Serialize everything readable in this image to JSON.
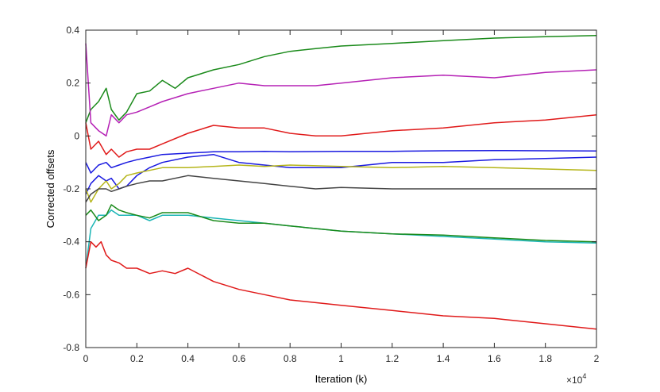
{
  "chart_data": {
    "type": "line",
    "xlabel": "Iteration (k)",
    "ylabel": "Corrected offsets",
    "x_multiplier_label": "×10",
    "x_multiplier_exponent": "4",
    "xlim": [
      0,
      2
    ],
    "ylim": [
      -0.8,
      0.4
    ],
    "grid": false,
    "legend": "none",
    "x_ticks": [
      0,
      0.2,
      0.4,
      0.6,
      0.8,
      1,
      1.2,
      1.4,
      1.6,
      1.8,
      2
    ],
    "x_tick_labels": [
      "0",
      "0.2",
      "0.4",
      "0.6",
      "0.8",
      "1",
      "1.2",
      "1.4",
      "1.6",
      "1.8",
      "2"
    ],
    "y_ticks": [
      -0.8,
      -0.6,
      -0.4,
      -0.2,
      0,
      0.2,
      0.4
    ],
    "y_tick_labels": [
      "-0.8",
      "-0.6",
      "-0.4",
      "-0.2",
      "0",
      "0.2",
      "0.4"
    ],
    "series": [
      {
        "color": "#1a8a1a",
        "x": [
          0,
          0.02,
          0.05,
          0.08,
          0.1,
          0.13,
          0.16,
          0.2,
          0.25,
          0.3,
          0.35,
          0.4,
          0.5,
          0.6,
          0.7,
          0.8,
          0.9,
          1.0,
          1.2,
          1.4,
          1.6,
          1.8,
          2.0
        ],
        "y": [
          0.05,
          0.1,
          0.13,
          0.18,
          0.1,
          0.06,
          0.09,
          0.16,
          0.17,
          0.21,
          0.18,
          0.22,
          0.25,
          0.27,
          0.3,
          0.32,
          0.33,
          0.34,
          0.35,
          0.36,
          0.37,
          0.375,
          0.38
        ]
      },
      {
        "color": "#b521b5",
        "x": [
          0,
          0.02,
          0.05,
          0.08,
          0.1,
          0.13,
          0.16,
          0.2,
          0.25,
          0.3,
          0.4,
          0.5,
          0.6,
          0.7,
          0.8,
          0.9,
          1.0,
          1.2,
          1.4,
          1.6,
          1.8,
          2.0
        ],
        "y": [
          0.35,
          0.05,
          0.02,
          0.0,
          0.08,
          0.05,
          0.08,
          0.09,
          0.11,
          0.13,
          0.16,
          0.18,
          0.2,
          0.19,
          0.19,
          0.19,
          0.2,
          0.22,
          0.23,
          0.22,
          0.24,
          0.25
        ]
      },
      {
        "color": "#e01a1a",
        "x": [
          0,
          0.02,
          0.05,
          0.08,
          0.1,
          0.13,
          0.16,
          0.2,
          0.25,
          0.3,
          0.4,
          0.5,
          0.6,
          0.7,
          0.8,
          0.9,
          1.0,
          1.2,
          1.4,
          1.6,
          1.8,
          2.0
        ],
        "y": [
          0.05,
          -0.05,
          -0.02,
          -0.07,
          -0.05,
          -0.08,
          -0.06,
          -0.05,
          -0.05,
          -0.03,
          0.01,
          0.04,
          0.03,
          0.03,
          0.01,
          0.0,
          0.0,
          0.02,
          0.03,
          0.05,
          0.06,
          0.08
        ]
      },
      {
        "color": "#1a1ae0",
        "x": [
          0,
          0.02,
          0.05,
          0.08,
          0.1,
          0.13,
          0.16,
          0.2,
          0.25,
          0.3,
          0.4,
          0.5,
          0.6,
          0.7,
          0.8,
          1.0,
          1.2,
          1.4,
          1.6,
          1.8,
          2.0
        ],
        "y": [
          -0.1,
          -0.14,
          -0.11,
          -0.1,
          -0.12,
          -0.11,
          -0.1,
          -0.09,
          -0.08,
          -0.07,
          -0.065,
          -0.06,
          -0.06,
          -0.058,
          -0.06,
          -0.058,
          -0.058,
          -0.056,
          -0.055,
          -0.056,
          -0.057
        ]
      },
      {
        "color": "#1a1ae0",
        "x": [
          0,
          0.02,
          0.05,
          0.08,
          0.1,
          0.13,
          0.16,
          0.2,
          0.25,
          0.3,
          0.4,
          0.5,
          0.6,
          0.7,
          0.8,
          1.0,
          1.2,
          1.4,
          1.6,
          1.8,
          2.0
        ],
        "y": [
          -0.22,
          -0.18,
          -0.15,
          -0.17,
          -0.16,
          -0.2,
          -0.19,
          -0.15,
          -0.12,
          -0.1,
          -0.08,
          -0.07,
          -0.1,
          -0.11,
          -0.12,
          -0.12,
          -0.1,
          -0.1,
          -0.09,
          -0.085,
          -0.08
        ]
      },
      {
        "color": "#b5b51a",
        "x": [
          0,
          0.02,
          0.05,
          0.08,
          0.1,
          0.13,
          0.16,
          0.2,
          0.25,
          0.3,
          0.4,
          0.5,
          0.6,
          0.7,
          0.8,
          1.0,
          1.2,
          1.4,
          1.6,
          1.8,
          2.0
        ],
        "y": [
          -0.2,
          -0.25,
          -0.2,
          -0.17,
          -0.2,
          -0.18,
          -0.15,
          -0.14,
          -0.13,
          -0.12,
          -0.12,
          -0.115,
          -0.11,
          -0.115,
          -0.11,
          -0.115,
          -0.12,
          -0.115,
          -0.12,
          -0.125,
          -0.13
        ]
      },
      {
        "color": "#444444",
        "x": [
          0,
          0.02,
          0.05,
          0.08,
          0.1,
          0.13,
          0.16,
          0.2,
          0.25,
          0.3,
          0.4,
          0.5,
          0.6,
          0.7,
          0.8,
          0.9,
          1.0,
          1.2,
          1.4,
          1.6,
          1.8,
          2.0
        ],
        "y": [
          -0.25,
          -0.22,
          -0.2,
          -0.2,
          -0.21,
          -0.2,
          -0.19,
          -0.18,
          -0.17,
          -0.17,
          -0.15,
          -0.16,
          -0.17,
          -0.18,
          -0.19,
          -0.2,
          -0.195,
          -0.2,
          -0.2,
          -0.2,
          -0.2,
          -0.2
        ]
      },
      {
        "color": "#1ab5b5",
        "x": [
          0,
          0.02,
          0.05,
          0.08,
          0.1,
          0.13,
          0.16,
          0.2,
          0.25,
          0.3,
          0.4,
          0.5,
          0.6,
          0.7,
          0.8,
          1.0,
          1.2,
          1.4,
          1.6,
          1.8,
          2.0
        ],
        "y": [
          -0.5,
          -0.35,
          -0.3,
          -0.3,
          -0.28,
          -0.3,
          -0.3,
          -0.3,
          -0.32,
          -0.3,
          -0.3,
          -0.31,
          -0.32,
          -0.33,
          -0.34,
          -0.36,
          -0.37,
          -0.38,
          -0.39,
          -0.4,
          -0.405
        ]
      },
      {
        "color": "#1a8a1a",
        "x": [
          0,
          0.02,
          0.05,
          0.08,
          0.1,
          0.13,
          0.16,
          0.2,
          0.25,
          0.3,
          0.4,
          0.5,
          0.6,
          0.7,
          0.8,
          1.0,
          1.2,
          1.4,
          1.6,
          1.8,
          2.0
        ],
        "y": [
          -0.3,
          -0.28,
          -0.32,
          -0.3,
          -0.26,
          -0.28,
          -0.29,
          -0.3,
          -0.31,
          -0.29,
          -0.29,
          -0.32,
          -0.33,
          -0.33,
          -0.34,
          -0.36,
          -0.37,
          -0.375,
          -0.385,
          -0.395,
          -0.4
        ]
      },
      {
        "color": "#e01a1a",
        "x": [
          0,
          0.02,
          0.04,
          0.06,
          0.08,
          0.1,
          0.13,
          0.16,
          0.2,
          0.25,
          0.3,
          0.35,
          0.4,
          0.5,
          0.6,
          0.7,
          0.8,
          1.0,
          1.2,
          1.4,
          1.6,
          1.8,
          2.0
        ],
        "y": [
          -0.5,
          -0.4,
          -0.42,
          -0.4,
          -0.45,
          -0.47,
          -0.48,
          -0.5,
          -0.5,
          -0.52,
          -0.51,
          -0.52,
          -0.5,
          -0.55,
          -0.58,
          -0.6,
          -0.62,
          -0.64,
          -0.66,
          -0.68,
          -0.69,
          -0.71,
          -0.73
        ]
      }
    ]
  }
}
